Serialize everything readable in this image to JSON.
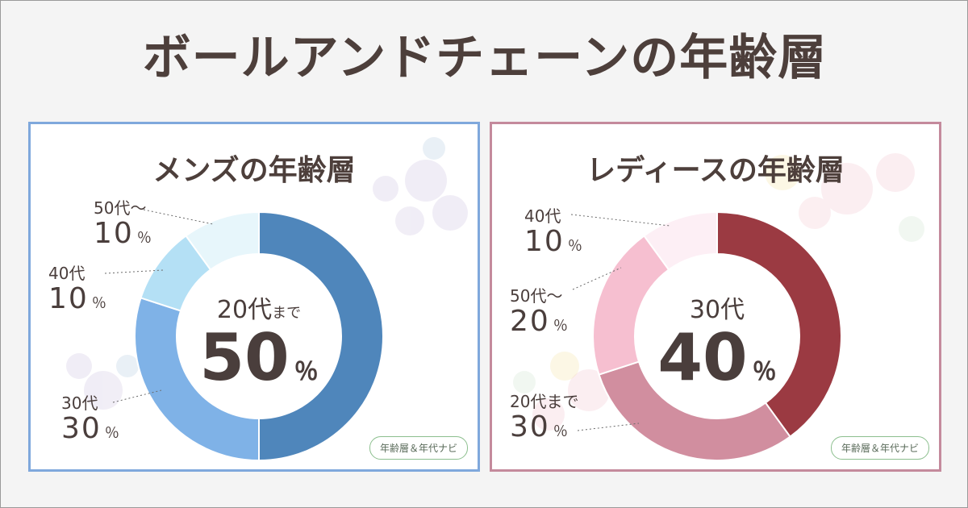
{
  "title": "ボールアンドチェーンの年齢層",
  "badge": "年齢層＆年代ナビ",
  "chart_data": [
    {
      "type": "pie",
      "title": "メンズの年齢層",
      "categories": [
        "20代まで",
        "30代",
        "40代",
        "50代～"
      ],
      "values": [
        50,
        30,
        10,
        10
      ],
      "colors": [
        "#4f86bb",
        "#7fb2e7",
        "#b4e0f5",
        "#e7f6fb"
      ],
      "highlight": {
        "category": "20代",
        "sub": "まで",
        "value": "50"
      }
    },
    {
      "type": "pie",
      "title": "レディースの年齢層",
      "categories": [
        "30代",
        "20代まで",
        "50代～",
        "40代"
      ],
      "values": [
        40,
        30,
        20,
        10
      ],
      "colors": [
        "#9b3a42",
        "#d18e9f",
        "#f6bfd0",
        "#fdeff5"
      ],
      "highlight": {
        "category": "30代",
        "sub": "",
        "value": "40"
      }
    }
  ],
  "men_labels": {
    "fifties": {
      "cat": "50代～",
      "val": "10"
    },
    "forties": {
      "cat": "40代",
      "val": "10"
    },
    "thirties": {
      "cat": "30代",
      "val": "30"
    }
  },
  "women_labels": {
    "forties": {
      "cat": "40代",
      "val": "10"
    },
    "fifties": {
      "cat": "50代～",
      "val": "20"
    },
    "twenties": {
      "cat": "20代まで",
      "val": "30"
    }
  },
  "percent_sign": "％"
}
